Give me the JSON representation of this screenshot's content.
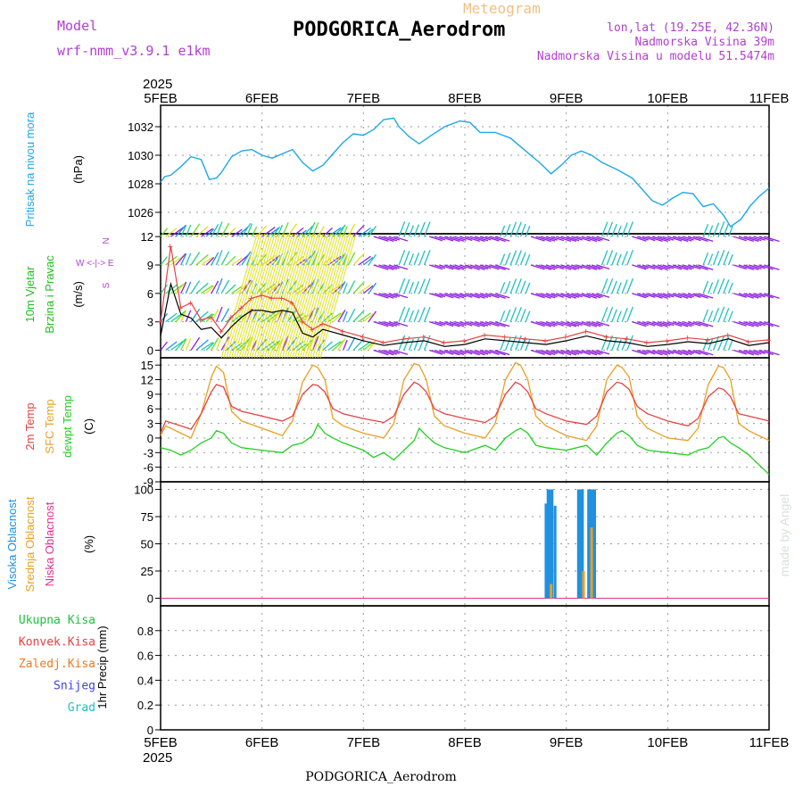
{
  "header": {
    "model_label": "Model",
    "model_name": "wrf-nmm_v3.9.1  e1km",
    "meteogram_label": "Meteogram",
    "station": "PODGORICA_Aerodrom",
    "lonlat": "lon,lat (19.25E, 42.36N)",
    "elevation": "Nadmorska Visina 39m",
    "model_elevation": "Nadmorska Visina u modelu 51.5474m",
    "year": "2025"
  },
  "footer": {
    "station": "PODGORICA_Aerodrom",
    "year": "2025"
  },
  "watermark": "made by Angel",
  "x_ticks": [
    "5FEB",
    "6FEB",
    "7FEB",
    "8FEB",
    "9FEB",
    "10FEB",
    "11FEB"
  ],
  "colors": {
    "pressure": "#1fa8e8",
    "temp2m": "#e84040",
    "sfc": "#e8a020",
    "dewpt": "#20d020",
    "high_cloud": "#2090e0",
    "mid_cloud": "#e8a020",
    "low_cloud": "#e03090",
    "total_precip": "#20c040",
    "conv_precip": "#e84040",
    "frozen": "#f07820",
    "snow": "#4040e0",
    "hail": "#20c0c0",
    "wind_dir_label": "#b040d0"
  },
  "chart_data": [
    {
      "type": "line",
      "panel": "pressure",
      "ylabel_1": "Pritisak na nivou mora",
      "ylabel_2": "(hPa)",
      "yticks": [
        1026,
        1028,
        1030,
        1032
      ],
      "ylim": [
        1024.5,
        1033.5
      ],
      "grid": true,
      "series": [
        {
          "name": "",
          "x": [
            0,
            0.04,
            0.1,
            0.2,
            0.3,
            0.4,
            0.48,
            0.55,
            0.6,
            0.7,
            0.8,
            0.9,
            1.0,
            1.1,
            1.2,
            1.3,
            1.4,
            1.5,
            1.6,
            1.7,
            1.8,
            1.9,
            2.0,
            2.1,
            2.2,
            2.3,
            2.35,
            2.45,
            2.55,
            2.65,
            2.8,
            2.95,
            3.05,
            3.15,
            3.3,
            3.45,
            3.6,
            3.75,
            3.85,
            3.95,
            4.05,
            4.15,
            4.25,
            4.35,
            4.5,
            4.65,
            4.75,
            4.85,
            4.95,
            5.05,
            5.15,
            5.25,
            5.35,
            5.45,
            5.55,
            5.62,
            5.72,
            5.82,
            5.9,
            6.0
          ],
          "values": [
            1028.1,
            1028.5,
            1028.6,
            1029.2,
            1029.9,
            1029.7,
            1028.3,
            1028.4,
            1028.8,
            1029.9,
            1030.3,
            1030.4,
            1030.0,
            1029.8,
            1030.1,
            1030.4,
            1029.5,
            1028.9,
            1029.3,
            1030.1,
            1030.9,
            1031.5,
            1031.4,
            1031.8,
            1032.5,
            1032.6,
            1032.0,
            1031.3,
            1030.8,
            1031.3,
            1032.0,
            1032.4,
            1032.3,
            1031.6,
            1031.6,
            1031.2,
            1030.3,
            1029.4,
            1028.7,
            1029.3,
            1030.0,
            1030.3,
            1030.0,
            1029.5,
            1029.0,
            1028.4,
            1027.6,
            1026.8,
            1026.5,
            1027.0,
            1027.4,
            1027.3,
            1026.4,
            1026.6,
            1025.8,
            1025.0,
            1025.5,
            1026.5,
            1027.1,
            1027.7
          ]
        }
      ]
    },
    {
      "type": "scatter",
      "panel": "wind",
      "ylabel_1": "10m Vjetar",
      "ylabel_2": "Brzina i Pravac",
      "ylabel_3": "(m/s)",
      "direction_key": "W <-|-> E",
      "direction_n": "N",
      "direction_s": "S",
      "yticks": [
        0,
        3,
        6,
        9,
        12
      ],
      "ylim": [
        -0.8,
        12.3
      ],
      "grid": true,
      "barb_rows": [
        0,
        3,
        6,
        9,
        12
      ],
      "series": [
        {
          "name": "",
          "x": [
            0,
            0.1,
            0.2,
            0.3,
            0.4,
            0.5,
            0.6,
            0.7,
            0.8,
            0.9,
            1.0,
            1.1,
            1.2,
            1.3,
            1.4,
            1.5,
            1.6,
            1.8,
            2.0,
            2.2,
            2.4,
            2.6,
            2.8,
            3.0,
            3.2,
            3.4,
            3.6,
            3.8,
            4.0,
            4.2,
            4.4,
            4.6,
            4.8,
            5.0,
            5.2,
            5.4,
            5.6,
            5.8,
            6.0
          ],
          "values": [
            1.5,
            7.0,
            3.8,
            3.4,
            2.2,
            2.4,
            1.3,
            2.5,
            3.5,
            4.2,
            4.2,
            4.0,
            4.2,
            4.0,
            1.8,
            1.4,
            2.2,
            1.6,
            1.0,
            0.5,
            0.8,
            1.0,
            0.4,
            0.6,
            1.2,
            1.0,
            0.8,
            0.6,
            1.0,
            1.5,
            1.0,
            0.8,
            0.4,
            0.6,
            0.9,
            0.7,
            1.2,
            0.5,
            0.8
          ]
        },
        {
          "name": "",
          "x": [
            0,
            0.1,
            0.2,
            0.3,
            0.4,
            0.5,
            0.6,
            0.7,
            0.8,
            0.9,
            1.0,
            1.1,
            1.2,
            1.3,
            1.4,
            1.5,
            1.6,
            1.8,
            2.0,
            2.2,
            2.4,
            2.6,
            2.8,
            3.0,
            3.2,
            3.4,
            3.6,
            3.8,
            4.0,
            4.2,
            4.4,
            4.6,
            4.8,
            5.0,
            5.2,
            5.4,
            5.6,
            5.8,
            6.0
          ],
          "values": [
            3.0,
            11.0,
            4.5,
            5.0,
            3.2,
            3.5,
            2.0,
            3.5,
            4.5,
            5.5,
            5.8,
            5.5,
            5.5,
            5.0,
            3.0,
            2.2,
            2.8,
            2.0,
            1.4,
            0.8,
            1.2,
            1.4,
            0.8,
            1.0,
            1.6,
            1.4,
            1.2,
            1.0,
            1.4,
            2.0,
            1.4,
            1.2,
            0.8,
            1.0,
            1.3,
            1.1,
            1.6,
            0.9,
            1.1
          ]
        }
      ]
    },
    {
      "type": "line",
      "panel": "temperature",
      "ylabel_1": "2m Temp",
      "ylabel_2": "SFC Temp",
      "ylabel_3": "dewpt Temp",
      "ylabel_4": "(C)",
      "yticks": [
        -9,
        -6,
        -3,
        0,
        3,
        6,
        9,
        12,
        15
      ],
      "ylim": [
        -9,
        16.5
      ],
      "grid": true,
      "series": [
        {
          "name": "2m Temp",
          "x": [
            0,
            0.05,
            0.2,
            0.3,
            0.4,
            0.5,
            0.55,
            0.62,
            0.7,
            0.8,
            1.0,
            1.2,
            1.3,
            1.4,
            1.5,
            1.55,
            1.62,
            1.7,
            1.8,
            2.0,
            2.2,
            2.3,
            2.4,
            2.5,
            2.55,
            2.62,
            2.7,
            2.8,
            3.0,
            3.2,
            3.3,
            3.4,
            3.5,
            3.55,
            3.62,
            3.7,
            3.8,
            4.0,
            4.2,
            4.3,
            4.4,
            4.5,
            4.55,
            4.62,
            4.7,
            4.8,
            5.0,
            5.2,
            5.3,
            5.4,
            5.5,
            5.55,
            5.62,
            5.7,
            5.8,
            6.0
          ],
          "values": [
            1.0,
            3.5,
            2.5,
            1.8,
            5.0,
            9.5,
            11.0,
            10.5,
            6.5,
            5.5,
            4.5,
            3.5,
            4.5,
            9.0,
            11.0,
            10.8,
            9.5,
            6.0,
            5.0,
            4.0,
            3.2,
            4.5,
            9.0,
            11.5,
            11.0,
            9.5,
            6.0,
            5.0,
            4.0,
            3.2,
            4.5,
            9.0,
            11.5,
            11.0,
            9.5,
            6.0,
            5.0,
            3.5,
            2.8,
            4.5,
            9.5,
            11.5,
            11.2,
            10.0,
            6.5,
            5.0,
            3.5,
            2.5,
            4.0,
            8.5,
            10.3,
            10.0,
            8.5,
            5.0,
            4.5,
            3.5
          ]
        },
        {
          "name": "SFC Temp",
          "x": [
            0,
            0.05,
            0.2,
            0.3,
            0.4,
            0.5,
            0.55,
            0.62,
            0.7,
            0.8,
            1.0,
            1.2,
            1.3,
            1.4,
            1.5,
            1.55,
            1.62,
            1.7,
            1.8,
            2.0,
            2.2,
            2.3,
            2.4,
            2.5,
            2.55,
            2.62,
            2.7,
            2.8,
            3.0,
            3.2,
            3.3,
            3.4,
            3.5,
            3.55,
            3.62,
            3.7,
            3.8,
            4.0,
            4.2,
            4.3,
            4.4,
            4.5,
            4.55,
            4.62,
            4.7,
            4.8,
            5.0,
            5.2,
            5.3,
            5.4,
            5.5,
            5.55,
            5.62,
            5.7,
            5.8,
            6.0
          ],
          "values": [
            0.5,
            2.5,
            1.0,
            0.0,
            5.0,
            12.5,
            14.8,
            13.5,
            5.5,
            3.5,
            2.0,
            0.5,
            3.5,
            11.5,
            15.0,
            14.5,
            12.0,
            4.0,
            2.5,
            1.0,
            0.0,
            3.0,
            12.0,
            15.3,
            15.0,
            12.0,
            4.5,
            2.5,
            1.0,
            0.0,
            3.0,
            12.0,
            15.5,
            15.0,
            12.0,
            4.5,
            2.5,
            0.5,
            -0.5,
            2.5,
            12.0,
            15.0,
            14.5,
            12.5,
            4.5,
            2.0,
            0.0,
            -0.5,
            2.0,
            11.0,
            14.8,
            14.5,
            12.0,
            3.0,
            1.5,
            -0.5
          ]
        },
        {
          "name": "dewpt Temp",
          "x": [
            0,
            0.1,
            0.2,
            0.3,
            0.4,
            0.5,
            0.55,
            0.62,
            0.7,
            0.8,
            1.0,
            1.2,
            1.3,
            1.4,
            1.5,
            1.55,
            1.62,
            1.7,
            1.8,
            2.0,
            2.1,
            2.2,
            2.3,
            2.4,
            2.5,
            2.55,
            2.62,
            2.7,
            2.8,
            3.0,
            3.2,
            3.3,
            3.4,
            3.5,
            3.55,
            3.62,
            3.7,
            3.8,
            4.0,
            4.2,
            4.3,
            4.4,
            4.5,
            4.55,
            4.62,
            4.7,
            4.8,
            5.0,
            5.2,
            5.3,
            5.4,
            5.5,
            5.55,
            5.62,
            5.7,
            5.8,
            6.0
          ],
          "values": [
            -2.0,
            -2.5,
            -3.5,
            -2.5,
            -1.0,
            0.0,
            1.5,
            1.0,
            -1.0,
            -2.0,
            -2.5,
            -3.0,
            -1.5,
            -1.0,
            0.5,
            2.8,
            1.0,
            0.0,
            -1.0,
            -2.5,
            -4.0,
            -3.0,
            -4.5,
            -2.5,
            -0.5,
            2.0,
            0.5,
            -1.0,
            -2.0,
            -3.0,
            -1.5,
            -2.5,
            0.0,
            1.5,
            2.0,
            1.0,
            -1.5,
            -2.0,
            -2.5,
            -1.5,
            -3.5,
            -1.0,
            1.0,
            1.5,
            0.5,
            -1.5,
            -2.5,
            -3.0,
            -3.5,
            -2.5,
            -2.0,
            0.0,
            0.3,
            -1.0,
            -2.0,
            -3.5,
            -7.5
          ]
        }
      ]
    },
    {
      "type": "bar",
      "panel": "cloud",
      "ylabel_1": "Visoka Oblacnost",
      "ylabel_2": "Srednja Oblacnost",
      "ylabel_3": "Niska Oblacnost",
      "ylabel_4": "(%)",
      "yticks": [
        0,
        25,
        50,
        75,
        100
      ],
      "ylim": [
        -7,
        107
      ],
      "grid": true,
      "series": [
        {
          "name": "Visoka Oblacnost",
          "x": [
            3.8,
            3.82,
            3.84,
            3.86,
            3.89,
            4.12,
            4.14,
            4.16,
            4.22,
            4.24,
            4.26,
            4.28
          ],
          "values": [
            87,
            100,
            100,
            100,
            85,
            100,
            100,
            100,
            100,
            100,
            100,
            100
          ]
        },
        {
          "name": "Srednja Oblacnost",
          "x": [
            3.81,
            3.83,
            3.85,
            3.87,
            4.13,
            4.15,
            4.17,
            4.23,
            4.25,
            4.27
          ],
          "values": [
            0,
            0,
            13,
            0,
            0,
            0,
            25,
            0,
            65,
            0
          ]
        },
        {
          "name": "Niska Oblacnost",
          "x": [],
          "values": []
        }
      ]
    },
    {
      "type": "bar",
      "panel": "precipitation",
      "ylabel_1": "1hr Precip (mm)",
      "legend": [
        "Ukupna  Kisa",
        "Konvek.Kisa",
        "Zaledj.Kisa",
        "Snijeg",
        "Grad"
      ],
      "yticks": [
        0,
        0.2,
        0.4,
        0.6,
        0.8
      ],
      "ylim": [
        0,
        1.0
      ],
      "grid": true,
      "series": [
        {
          "name": "Ukupna  Kisa",
          "x": [],
          "values": []
        },
        {
          "name": "Konvek.Kisa",
          "x": [],
          "values": []
        },
        {
          "name": "Zaledj.Kisa",
          "x": [],
          "values": []
        },
        {
          "name": "Snijeg",
          "x": [],
          "values": []
        },
        {
          "name": "Grad",
          "x": [],
          "values": []
        }
      ]
    }
  ]
}
